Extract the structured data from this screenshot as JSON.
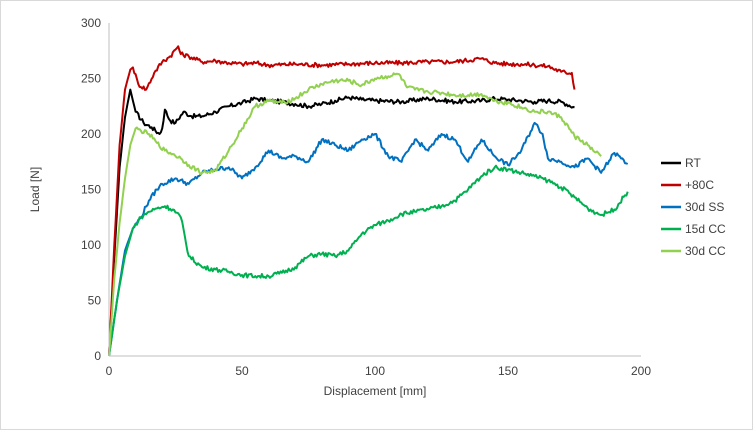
{
  "chart_data": {
    "type": "line",
    "title": "",
    "xlabel": "Displacement [mm]",
    "ylabel": "Load [N]",
    "xlim": [
      0,
      200
    ],
    "ylim": [
      0,
      300
    ],
    "xticks": [
      0,
      50,
      100,
      150,
      200
    ],
    "yticks": [
      0,
      50,
      100,
      150,
      200,
      250,
      300
    ],
    "grid": false,
    "legend_position": "right",
    "series": [
      {
        "name": "RT",
        "color": "#000000",
        "x": [
          0,
          2,
          4,
          6,
          8,
          10,
          13,
          16,
          19,
          20,
          21,
          23,
          25,
          28,
          31,
          35,
          40,
          45,
          50,
          55,
          60,
          65,
          70,
          75,
          80,
          85,
          90,
          95,
          100,
          110,
          120,
          130,
          140,
          145,
          150,
          155,
          160,
          165,
          170,
          175
        ],
        "y": [
          0,
          90,
          170,
          215,
          240,
          220,
          210,
          206,
          200,
          205,
          222,
          212,
          210,
          220,
          216,
          216,
          220,
          225,
          228,
          232,
          230,
          229,
          227,
          225,
          227,
          230,
          233,
          231,
          230,
          229,
          232,
          229,
          230,
          232,
          231,
          230,
          229,
          230,
          229,
          224
        ]
      },
      {
        "name": "+80C",
        "color": "#c00000",
        "x": [
          0,
          2,
          4,
          6,
          8,
          9,
          11,
          14,
          17,
          20,
          23,
          26,
          27,
          30,
          35,
          40,
          45,
          50,
          55,
          60,
          70,
          80,
          90,
          100,
          110,
          120,
          130,
          140,
          141,
          145,
          150,
          155,
          160,
          165,
          170,
          174,
          175
        ],
        "y": [
          0,
          100,
          190,
          240,
          258,
          260,
          245,
          240,
          255,
          265,
          270,
          279,
          272,
          270,
          265,
          266,
          264,
          263,
          264,
          262,
          263,
          262,
          263,
          264,
          264,
          265,
          265,
          268,
          267,
          264,
          263,
          263,
          262,
          261,
          256,
          255,
          240
        ]
      },
      {
        "name": "30d SS",
        "color": "#0070c0",
        "x": [
          0,
          3,
          6,
          9,
          12,
          15,
          18,
          20,
          25,
          30,
          35,
          40,
          45,
          50,
          55,
          60,
          65,
          70,
          75,
          80,
          85,
          90,
          95,
          100,
          105,
          110,
          115,
          120,
          125,
          130,
          135,
          140,
          145,
          150,
          155,
          160,
          163,
          165,
          170,
          175,
          180,
          185,
          190,
          195
        ],
        "y": [
          0,
          50,
          95,
          115,
          125,
          140,
          150,
          155,
          160,
          155,
          165,
          168,
          170,
          160,
          170,
          185,
          178,
          180,
          175,
          195,
          190,
          185,
          195,
          200,
          180,
          175,
          195,
          185,
          200,
          195,
          175,
          195,
          180,
          172,
          185,
          210,
          200,
          178,
          175,
          170,
          178,
          165,
          183,
          173
        ]
      },
      {
        "name": "15d CC",
        "color": "#00b050",
        "x": [
          0,
          3,
          6,
          9,
          12,
          15,
          18,
          21,
          24,
          27,
          30,
          35,
          40,
          45,
          50,
          55,
          60,
          65,
          70,
          75,
          80,
          85,
          90,
          95,
          100,
          105,
          110,
          115,
          120,
          125,
          130,
          135,
          140,
          145,
          150,
          155,
          160,
          165,
          170,
          175,
          180,
          185,
          190,
          195
        ],
        "y": [
          0,
          50,
          90,
          115,
          125,
          130,
          133,
          135,
          132,
          125,
          90,
          80,
          78,
          76,
          73,
          72,
          72,
          75,
          80,
          90,
          92,
          90,
          95,
          110,
          118,
          122,
          128,
          130,
          132,
          135,
          140,
          150,
          162,
          170,
          168,
          165,
          162,
          158,
          152,
          143,
          133,
          127,
          132,
          148
        ]
      },
      {
        "name": "30d CC",
        "color": "#92d050",
        "x": [
          0,
          2,
          4,
          6,
          8,
          10,
          12,
          15,
          18,
          21,
          24,
          27,
          30,
          35,
          40,
          45,
          50,
          55,
          60,
          65,
          70,
          75,
          80,
          85,
          90,
          95,
          100,
          105,
          109,
          112,
          115,
          120,
          125,
          130,
          135,
          140,
          145,
          150,
          155,
          160,
          165,
          170,
          175,
          180,
          182,
          185
        ],
        "y": [
          0,
          70,
          120,
          160,
          190,
          205,
          203,
          200,
          192,
          185,
          182,
          178,
          172,
          165,
          167,
          185,
          205,
          225,
          230,
          228,
          232,
          240,
          245,
          248,
          248,
          244,
          250,
          252,
          254,
          242,
          240,
          238,
          237,
          235,
          235,
          236,
          230,
          228,
          224,
          220,
          220,
          215,
          198,
          190,
          185,
          180
        ]
      }
    ]
  }
}
